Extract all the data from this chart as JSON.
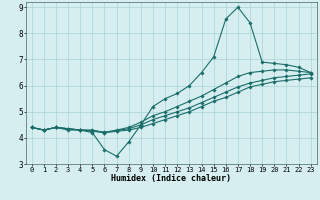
{
  "xlabel": "Humidex (Indice chaleur)",
  "ylabel": "",
  "xlim": [
    -0.5,
    23.5
  ],
  "ylim": [
    3,
    9.2
  ],
  "xticks": [
    0,
    1,
    2,
    3,
    4,
    5,
    6,
    7,
    8,
    9,
    10,
    11,
    12,
    13,
    14,
    15,
    16,
    17,
    18,
    19,
    20,
    21,
    22,
    23
  ],
  "yticks": [
    3,
    4,
    5,
    6,
    7,
    8,
    9
  ],
  "bg_color": "#d6eef0",
  "line_color": "#1a6e6a",
  "grid_color": "#b0d8da",
  "curves": [
    {
      "x": [
        0,
        1,
        2,
        3,
        4,
        5,
        6,
        7,
        8,
        9,
        10,
        11,
        12,
        13,
        14,
        15,
        16,
        17,
        18,
        19,
        20,
        21,
        22,
        23
      ],
      "y": [
        4.4,
        4.3,
        4.4,
        4.3,
        4.3,
        4.2,
        3.55,
        3.3,
        3.85,
        4.5,
        5.2,
        5.5,
        5.7,
        6.0,
        6.5,
        7.1,
        8.55,
        9.0,
        8.4,
        6.9,
        6.85,
        6.8,
        6.7,
        6.5
      ]
    },
    {
      "x": [
        0,
        1,
        2,
        3,
        4,
        5,
        6,
        7,
        8,
        9,
        10,
        11,
        12,
        13,
        14,
        15,
        16,
        17,
        18,
        19,
        20,
        21,
        22,
        23
      ],
      "y": [
        4.4,
        4.3,
        4.4,
        4.35,
        4.3,
        4.3,
        4.2,
        4.3,
        4.4,
        4.6,
        4.85,
        5.0,
        5.2,
        5.4,
        5.6,
        5.85,
        6.1,
        6.35,
        6.5,
        6.55,
        6.6,
        6.6,
        6.55,
        6.5
      ]
    },
    {
      "x": [
        0,
        1,
        2,
        3,
        4,
        5,
        6,
        7,
        8,
        9,
        10,
        11,
        12,
        13,
        14,
        15,
        16,
        17,
        18,
        19,
        20,
        21,
        22,
        23
      ],
      "y": [
        4.4,
        4.3,
        4.4,
        4.35,
        4.3,
        4.28,
        4.22,
        4.28,
        4.35,
        4.5,
        4.7,
        4.85,
        5.0,
        5.15,
        5.35,
        5.55,
        5.75,
        5.95,
        6.1,
        6.2,
        6.3,
        6.35,
        6.4,
        6.45
      ]
    },
    {
      "x": [
        0,
        1,
        2,
        3,
        4,
        5,
        6,
        7,
        8,
        9,
        10,
        11,
        12,
        13,
        14,
        15,
        16,
        17,
        18,
        19,
        20,
        21,
        22,
        23
      ],
      "y": [
        4.4,
        4.3,
        4.4,
        4.35,
        4.3,
        4.25,
        4.2,
        4.25,
        4.3,
        4.4,
        4.55,
        4.7,
        4.85,
        5.0,
        5.2,
        5.4,
        5.55,
        5.75,
        5.95,
        6.05,
        6.15,
        6.2,
        6.25,
        6.3
      ]
    }
  ]
}
